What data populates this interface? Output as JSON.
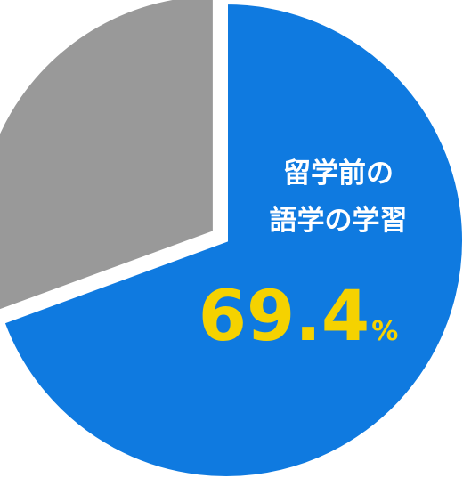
{
  "chart_data": {
    "type": "pie",
    "slices": [
      {
        "label_lines": [
          "留学前の",
          "語学の学習"
        ],
        "value": 69.4,
        "value_text": "69.4",
        "unit": "%",
        "color": "#0f7ae0",
        "exploded": false
      },
      {
        "label_lines": [],
        "value": 30.6,
        "color": "#999999",
        "exploded": true
      }
    ],
    "start": "12 o'clock",
    "direction": "clockwise",
    "colors": {
      "highlight_text": "#f5d200",
      "label_text": "#ffffff"
    }
  }
}
